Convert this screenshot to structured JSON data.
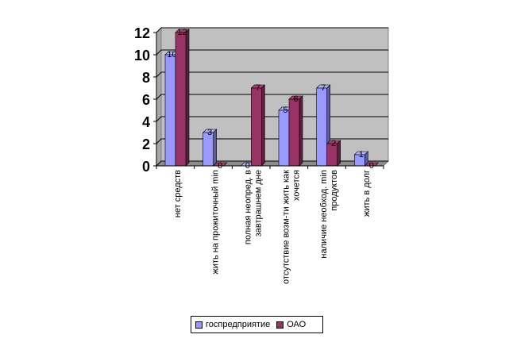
{
  "chart_data": {
    "type": "bar",
    "categories": [
      [
        "нет средств"
      ],
      [
        "жить на прожиточный min"
      ],
      [
        "полная неопред. в",
        "завтрашнем дне"
      ],
      [
        "отсутствие возм-ти жить как",
        "хочется"
      ],
      [
        "наличие необход. min",
        "продуктов"
      ],
      [
        "жить в долг"
      ]
    ],
    "series": [
      {
        "name": "госпредприятие",
        "values": [
          10,
          3,
          0,
          5,
          7,
          1
        ],
        "color": "#9999ff"
      },
      {
        "name": "ОАО",
        "values": [
          12,
          0,
          7,
          6,
          2,
          0
        ],
        "color": "#993366"
      }
    ],
    "ylim": [
      0,
      12
    ],
    "yticks": [
      "0",
      "2",
      "4",
      "6",
      "8",
      "10",
      "12"
    ],
    "grid": true,
    "plot_background": "#c0c0c0",
    "legend_position": "bottom"
  }
}
